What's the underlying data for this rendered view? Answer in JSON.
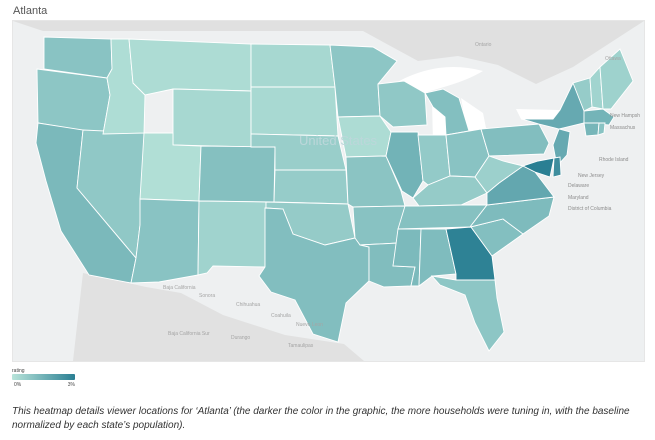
{
  "map": {
    "title": "Atlanta",
    "country_label": "United States",
    "labels": {
      "ontario": "Ontario",
      "ottawa": "Ottawa",
      "new_hampshire": "New Hampsh",
      "massachusetts": "Massachus",
      "rhode_island": "Rhode Island",
      "new_jersey": "New Jersey",
      "delaware": "Delaware",
      "maryland": "Maryland",
      "district_of_columbia": "District of Columbia",
      "baja_california": "Baja California",
      "sonora": "Sonora",
      "chihuahua": "Chihuahua",
      "coahuila": "Coahuila",
      "nuevo_leon": "Nuevo Leon",
      "baja_california_sur": "Baja California Sur",
      "durango": "Durango",
      "tamaulipas": "Tamaulipas"
    },
    "colors": {
      "background": "#eef0f1",
      "land": "#dedede",
      "water": "#ffffff",
      "low": "#b8e4da",
      "high": "#2a7f93",
      "border": "#ffffff"
    },
    "states": {
      "WA": 0.33,
      "OR": 0.3,
      "CA": 0.43,
      "NV": 0.28,
      "ID": 0.07,
      "MT": 0.08,
      "WY": 0.12,
      "UT": 0.05,
      "CO": 0.36,
      "AZ": 0.33,
      "NM": 0.17,
      "ND": 0.12,
      "SD": 0.11,
      "NE": 0.22,
      "KS": 0.24,
      "OK": 0.25,
      "TX": 0.38,
      "MN": 0.3,
      "IA": 0.08,
      "MO": 0.32,
      "AR": 0.34,
      "LA": 0.39,
      "WI": 0.28,
      "IL": 0.49,
      "MI": 0.37,
      "IN": 0.26,
      "OH": 0.33,
      "KY": 0.25,
      "TN": 0.35,
      "MS": 0.42,
      "AL": 0.4,
      "GA": 0.97,
      "FL": 0.3,
      "SC": 0.37,
      "NC": 0.41,
      "VA": 0.6,
      "WV": 0.2,
      "PA": 0.38,
      "NY": 0.58,
      "VT": 0.24,
      "NH": 0.16,
      "ME": 0.18,
      "MA": 0.48,
      "CT": 0.46,
      "RI": 0.33,
      "NJ": 0.58,
      "DE": 0.85,
      "MD": 1.0
    }
  },
  "legend": {
    "title": "rating",
    "min_label": "0%",
    "max_label": "3%"
  },
  "caption": "This heatmap details viewer locations for ‘Atlanta’ (the darker the color in the graphic, the more households were tuning in, with the baseline normalized by each state’s population)."
}
